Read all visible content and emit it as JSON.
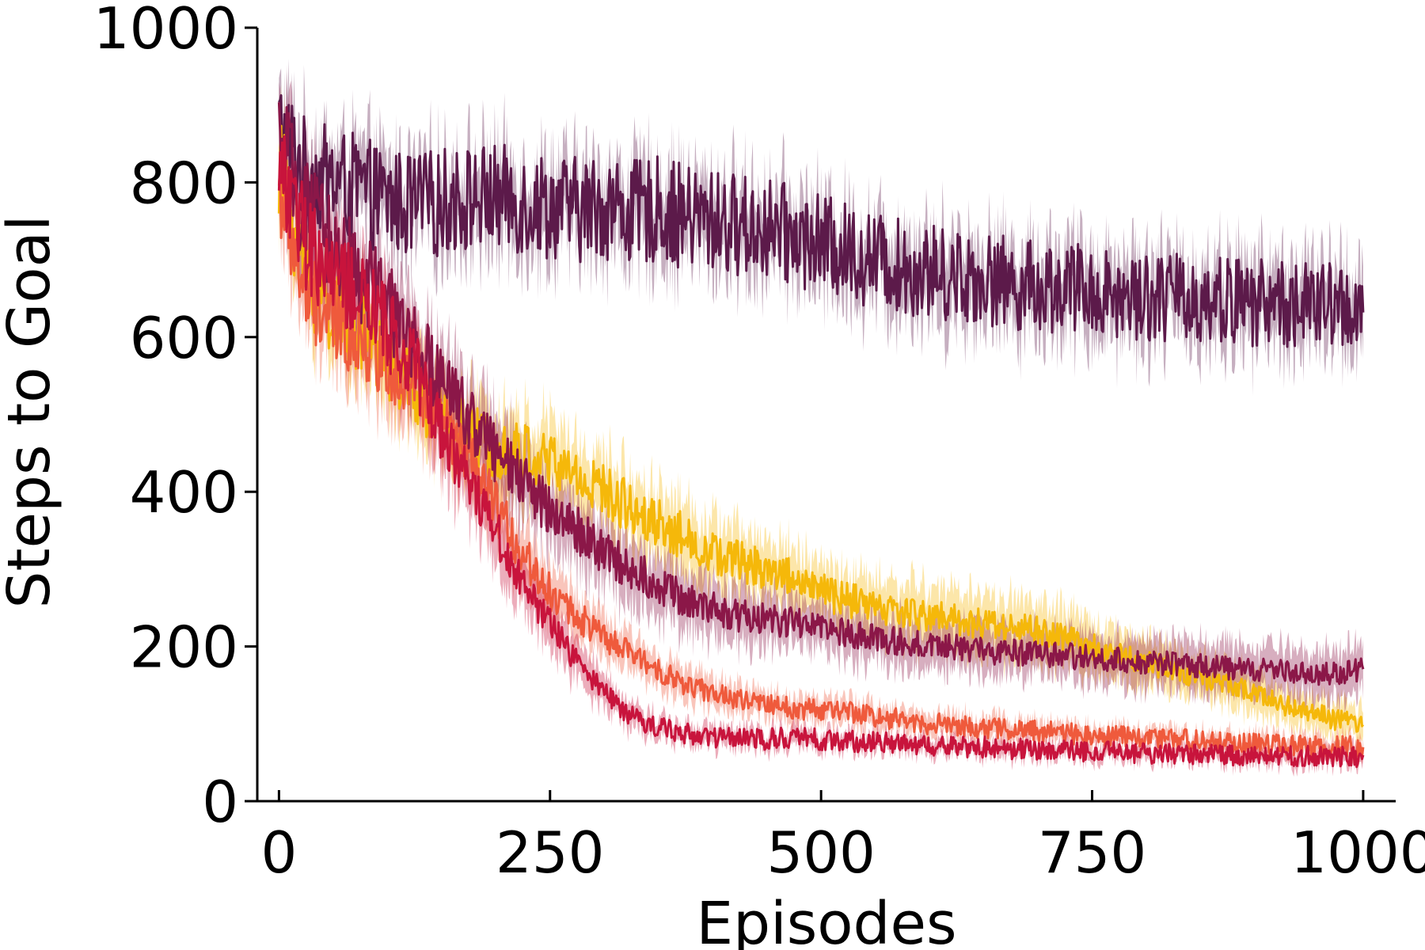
{
  "chart_data": {
    "type": "line",
    "title": "",
    "xlabel": "Episodes",
    "ylabel": "Steps to Goal",
    "xlim": [
      -20,
      1030
    ],
    "ylim": [
      0,
      1000
    ],
    "x_ticks": [
      0,
      250,
      500,
      750,
      1000
    ],
    "x_tick_labels": [
      "0",
      "250",
      "500",
      "750",
      "1000"
    ],
    "y_ticks": [
      0,
      200,
      400,
      600,
      800,
      1000
    ],
    "y_tick_labels": [
      "0",
      "200",
      "400",
      "600",
      "800",
      "1000"
    ],
    "grid": false,
    "legend": "none",
    "band_opacity": 0.35,
    "x": [
      0,
      25,
      50,
      75,
      100,
      125,
      150,
      175,
      200,
      225,
      250,
      275,
      300,
      325,
      350,
      375,
      400,
      425,
      450,
      475,
      500,
      525,
      550,
      575,
      600,
      625,
      650,
      675,
      700,
      725,
      750,
      775,
      800,
      825,
      850,
      875,
      900,
      925,
      950,
      975,
      1000
    ],
    "series": [
      {
        "color": "#5c1a4a",
        "values": [
          870,
          810,
          800,
          790,
          775,
          770,
          775,
          780,
          780,
          775,
          770,
          765,
          770,
          760,
          765,
          755,
          750,
          745,
          740,
          730,
          720,
          710,
          700,
          690,
          685,
          680,
          675,
          670,
          665,
          665,
          660,
          655,
          655,
          650,
          650,
          648,
          645,
          645,
          640,
          640,
          640
        ],
        "band": [
          40,
          45,
          45,
          45,
          45,
          45,
          45,
          45,
          45,
          45,
          45,
          45,
          45,
          45,
          45,
          45,
          45,
          45,
          45,
          45,
          45,
          45,
          45,
          45,
          45,
          45,
          45,
          45,
          45,
          45,
          45,
          45,
          45,
          45,
          45,
          45,
          45,
          45,
          45,
          45,
          45
        ]
      },
      {
        "color": "#f5b80a",
        "values": [
          820,
          680,
          630,
          610,
          570,
          530,
          500,
          470,
          460,
          450,
          440,
          420,
          400,
          380,
          360,
          340,
          320,
          310,
          300,
          290,
          270,
          260,
          250,
          245,
          240,
          235,
          230,
          225,
          220,
          210,
          200,
          190,
          180,
          170,
          160,
          150,
          140,
          125,
          115,
          105,
          100
        ],
        "band": [
          40,
          45,
          45,
          45,
          45,
          45,
          45,
          45,
          45,
          45,
          45,
          40,
          40,
          40,
          40,
          40,
          38,
          38,
          36,
          36,
          35,
          35,
          35,
          35,
          35,
          35,
          35,
          35,
          35,
          32,
          30,
          30,
          28,
          28,
          26,
          25,
          24,
          22,
          20,
          20,
          20
        ]
      },
      {
        "color": "#ef5a3c",
        "values": [
          800,
          650,
          620,
          600,
          570,
          540,
          490,
          440,
          380,
          320,
          270,
          240,
          210,
          190,
          170,
          150,
          140,
          130,
          125,
          120,
          118,
          115,
          110,
          105,
          100,
          98,
          95,
          92,
          90,
          88,
          86,
          84,
          82,
          80,
          78,
          76,
          74,
          72,
          70,
          70,
          70
        ],
        "band": [
          40,
          45,
          45,
          45,
          45,
          45,
          45,
          40,
          40,
          35,
          32,
          28,
          25,
          22,
          20,
          20,
          18,
          18,
          16,
          16,
          15,
          15,
          15,
          14,
          14,
          14,
          13,
          13,
          13,
          12,
          12,
          12,
          12,
          12,
          12,
          12,
          12,
          12,
          12,
          12,
          12
        ]
      },
      {
        "color": "#8b1748",
        "values": [
          850,
          760,
          720,
          680,
          640,
          590,
          540,
          500,
          450,
          410,
          380,
          350,
          320,
          300,
          280,
          260,
          250,
          240,
          235,
          230,
          225,
          215,
          210,
          205,
          200,
          198,
          195,
          192,
          190,
          188,
          185,
          182,
          180,
          178,
          175,
          172,
          170,
          168,
          165,
          165,
          170
        ],
        "band": [
          40,
          45,
          45,
          45,
          45,
          45,
          45,
          45,
          45,
          45,
          40,
          40,
          40,
          38,
          36,
          35,
          34,
          32,
          32,
          30,
          30,
          30,
          30,
          30,
          30,
          28,
          28,
          28,
          28,
          28,
          28,
          28,
          28,
          28,
          28,
          28,
          28,
          28,
          28,
          28,
          28
        ]
      },
      {
        "color": "#c8143c",
        "values": [
          830,
          720,
          680,
          650,
          610,
          560,
          480,
          420,
          350,
          280,
          230,
          180,
          140,
          110,
          95,
          88,
          84,
          80,
          80,
          82,
          80,
          78,
          76,
          74,
          72,
          70,
          70,
          68,
          66,
          65,
          64,
          63,
          62,
          62,
          61,
          60,
          60,
          60,
          58,
          58,
          58
        ],
        "band": [
          40,
          45,
          45,
          45,
          45,
          45,
          45,
          40,
          40,
          35,
          30,
          25,
          20,
          16,
          14,
          12,
          12,
          12,
          12,
          12,
          10,
          10,
          10,
          10,
          10,
          10,
          10,
          10,
          10,
          10,
          10,
          10,
          10,
          10,
          10,
          10,
          10,
          10,
          10,
          10,
          10
        ]
      }
    ]
  }
}
